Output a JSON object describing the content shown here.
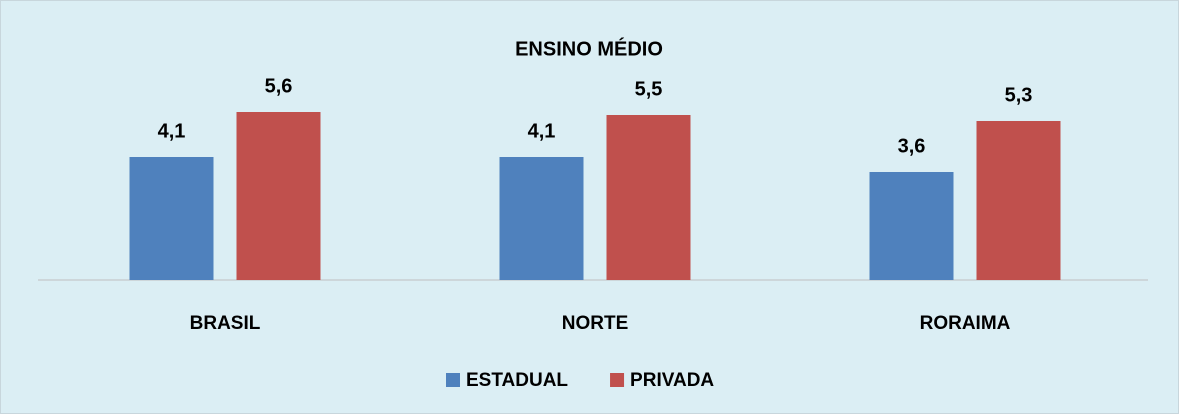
{
  "chart_data": {
    "type": "bar",
    "title": "ENSINO MÉDIO",
    "categories": [
      "BRASIL",
      "NORTE",
      "RORAIMA"
    ],
    "series": [
      {
        "name": "ESTADUAL",
        "color": "#4f81bd",
        "values": [
          4.1,
          4.1,
          3.6
        ],
        "value_labels": [
          "4,1",
          "4,1",
          "3,6"
        ]
      },
      {
        "name": "PRIVADA",
        "color": "#c0504d",
        "values": [
          5.6,
          5.5,
          5.3
        ],
        "value_labels": [
          "5,6",
          "5,5",
          "5,3"
        ]
      }
    ],
    "ylim": [
      0,
      6
    ],
    "legend": "bottom"
  }
}
